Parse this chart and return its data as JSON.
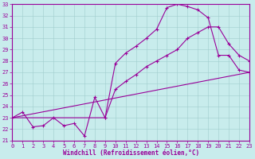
{
  "xlabel": "Windchill (Refroidissement éolien,°C)",
  "xlim": [
    0,
    23
  ],
  "ylim": [
    21,
    33
  ],
  "yticks": [
    21,
    22,
    23,
    24,
    25,
    26,
    27,
    28,
    29,
    30,
    31,
    32,
    33
  ],
  "xticks": [
    0,
    1,
    2,
    3,
    4,
    5,
    6,
    7,
    8,
    9,
    10,
    11,
    12,
    13,
    14,
    15,
    16,
    17,
    18,
    19,
    20,
    21,
    22,
    23
  ],
  "bg_color": "#c8ecec",
  "line_color": "#990099",
  "grid_color": "#a0cccc",
  "curve1_x": [
    0,
    1,
    2,
    3,
    4,
    5,
    6,
    7,
    8,
    9,
    10,
    11,
    12,
    13,
    14,
    15,
    16,
    17,
    18,
    19,
    20,
    21,
    22,
    23
  ],
  "curve1_y": [
    23.0,
    23.5,
    22.2,
    22.3,
    23.0,
    22.3,
    22.5,
    21.4,
    24.8,
    23.0,
    27.8,
    28.7,
    29.3,
    30.0,
    30.8,
    32.7,
    33.0,
    32.8,
    32.5,
    31.8,
    28.5,
    28.5,
    27.2,
    27.0
  ],
  "curve2_x": [
    0,
    9,
    10,
    11,
    12,
    13,
    14,
    15,
    16,
    17,
    18,
    19,
    20,
    21,
    22,
    23
  ],
  "curve2_y": [
    23.0,
    23.0,
    25.5,
    26.2,
    26.8,
    27.5,
    28.0,
    28.5,
    29.0,
    30.0,
    30.5,
    31.0,
    31.0,
    29.5,
    28.5,
    28.0
  ],
  "curve3_x": [
    0,
    23
  ],
  "curve3_y": [
    23.0,
    27.0
  ]
}
